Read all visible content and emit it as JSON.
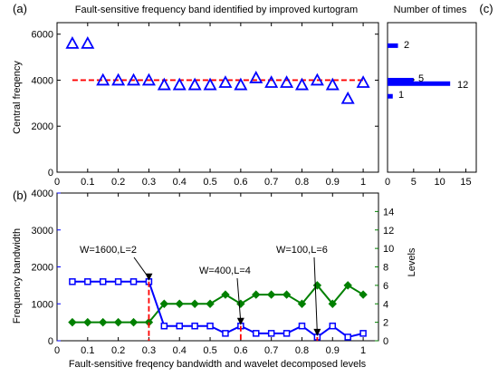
{
  "chart_data": [
    {
      "id": "a",
      "type": "scatter",
      "panel_label": "(a)",
      "title": "Fault-sensitive frequency band identified by improved kurtogram",
      "xlabel": "",
      "ylabel": "Central freqency",
      "xlim": [
        0,
        1.05
      ],
      "ylim": [
        0,
        6500
      ],
      "xticks": [
        0,
        0.1,
        0.2,
        0.3,
        0.4,
        0.5,
        0.6,
        0.7,
        0.8,
        0.9,
        1
      ],
      "yticks": [
        0,
        2000,
        4000,
        6000
      ],
      "grid": false,
      "points": {
        "x": [
          0.05,
          0.1,
          0.15,
          0.2,
          0.25,
          0.3,
          0.35,
          0.4,
          0.45,
          0.5,
          0.55,
          0.6,
          0.65,
          0.7,
          0.75,
          0.8,
          0.85,
          0.9,
          0.95,
          1.0
        ],
        "y": [
          5600,
          5600,
          4000,
          4000,
          4000,
          4000,
          3800,
          3800,
          3800,
          3800,
          3900,
          3800,
          4100,
          3900,
          3900,
          3800,
          4000,
          3800,
          3200,
          3900
        ],
        "marker": "triangle",
        "color": "#0000ff"
      },
      "reference_line": {
        "y": 4000,
        "x": [
          0.05,
          1.0
        ],
        "style": "dashed",
        "color": "#ff0000"
      }
    },
    {
      "id": "c",
      "type": "bar",
      "orientation": "horizontal",
      "panel_label": "(c)",
      "title": "Number of times",
      "xlim": [
        0,
        17
      ],
      "ylim": [
        0,
        6500
      ],
      "xticks": [
        0,
        5,
        10,
        15
      ],
      "color": "#0000ff",
      "bars": [
        {
          "y": 5500,
          "value": 2,
          "label": "2"
        },
        {
          "y": 4000,
          "value": 5,
          "label": "5"
        },
        {
          "y": 3850,
          "value": 12,
          "label": "12"
        },
        {
          "y": 3300,
          "value": 1,
          "label": "1"
        }
      ]
    },
    {
      "id": "b",
      "type": "line",
      "panel_label": "(b)",
      "xlabel": "Fault-sensitive freqency bandwidth and wavelet decomposed levels",
      "xlim": [
        0,
        1.05
      ],
      "xticks": [
        0,
        0.1,
        0.2,
        0.3,
        0.4,
        0.5,
        0.6,
        0.7,
        0.8,
        0.9,
        1
      ],
      "left_axis": {
        "label": "Frequency bandwidth",
        "ylim": [
          0,
          4000
        ],
        "yticks": [
          0,
          1000,
          2000,
          3000,
          4000
        ],
        "color": "#0000ff"
      },
      "right_axis": {
        "label": "Levels",
        "ylim": [
          0,
          16
        ],
        "yticks": [
          0,
          2,
          4,
          6,
          8,
          10,
          12,
          14
        ],
        "color": "#008000"
      },
      "x": [
        0.05,
        0.1,
        0.15,
        0.2,
        0.25,
        0.3,
        0.35,
        0.4,
        0.45,
        0.5,
        0.55,
        0.6,
        0.65,
        0.7,
        0.75,
        0.8,
        0.85,
        0.9,
        0.95,
        1.0
      ],
      "series": [
        {
          "axis": "left",
          "marker": "square",
          "color": "#0000ff",
          "values": [
            1600,
            1600,
            1600,
            1600,
            1600,
            1600,
            400,
            400,
            400,
            400,
            200,
            400,
            200,
            200,
            200,
            400,
            100,
            400,
            100,
            200
          ]
        },
        {
          "axis": "right",
          "marker": "diamond",
          "color": "#008000",
          "values": [
            2,
            2,
            2,
            2,
            2,
            2,
            4,
            4,
            4,
            4,
            5,
            4,
            5,
            5,
            5,
            4,
            6,
            4,
            6,
            5
          ]
        }
      ],
      "annotations": [
        {
          "text": "W=1600,L=2",
          "x": 0.3,
          "value": 1600
        },
        {
          "text": "W=400,L=4",
          "x": 0.6,
          "value": 400
        },
        {
          "text": "W=100,L=6",
          "x": 0.85,
          "value": 100
        }
      ]
    }
  ]
}
